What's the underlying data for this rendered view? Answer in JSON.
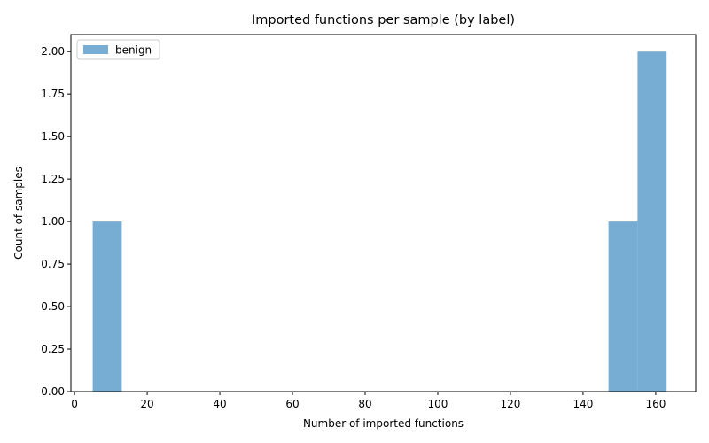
{
  "chart_data": {
    "type": "bar",
    "subtype": "histogram",
    "title": "Imported functions per sample (by label)",
    "xlabel": "Number of imported functions",
    "ylabel": "Count of samples",
    "xlim": [
      -1,
      171
    ],
    "ylim": [
      0,
      2.1
    ],
    "xticks": [
      0,
      20,
      40,
      60,
      80,
      100,
      120,
      140,
      160
    ],
    "xtick_labels": [
      "0",
      "20",
      "40",
      "60",
      "80",
      "100",
      "120",
      "140",
      "160"
    ],
    "yticks": [
      0,
      0.25,
      0.5,
      0.75,
      1.0,
      1.25,
      1.5,
      1.75,
      2.0
    ],
    "ytick_labels": [
      "0.00",
      "0.25",
      "0.50",
      "0.75",
      "1.00",
      "1.25",
      "1.50",
      "1.75",
      "2.00"
    ],
    "grid": false,
    "legend_position": "top-left",
    "series": [
      {
        "name": "benign",
        "color": "#77acd3",
        "bins": [
          {
            "x0": 5,
            "x1": 13,
            "count": 1
          },
          {
            "x0": 147,
            "x1": 155,
            "count": 1
          },
          {
            "x0": 155,
            "x1": 163,
            "count": 2
          }
        ]
      }
    ]
  }
}
